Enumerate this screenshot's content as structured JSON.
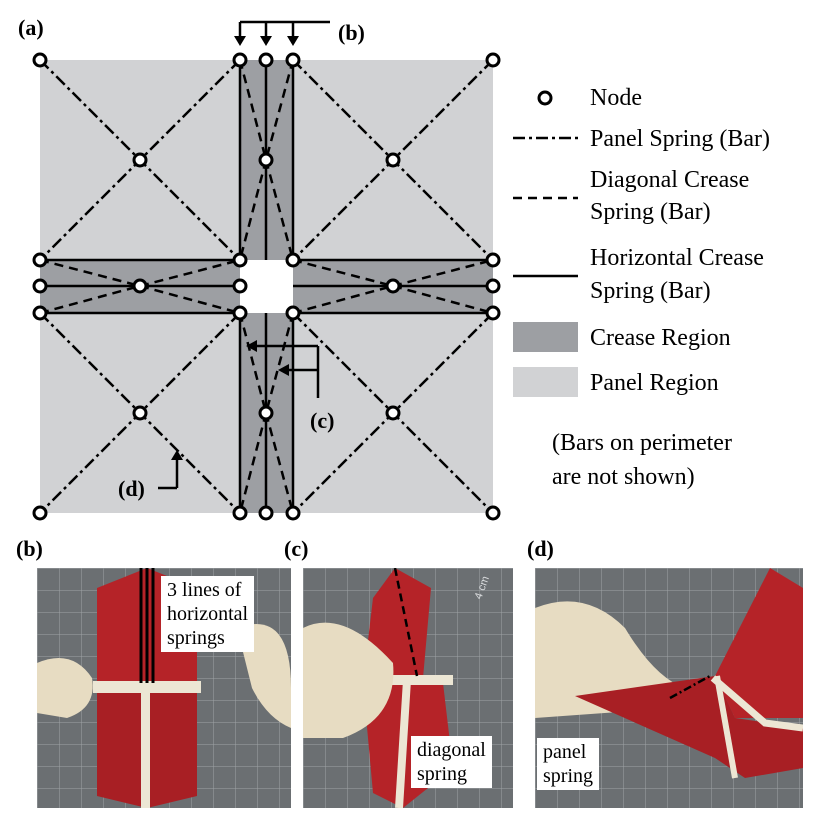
{
  "panel_labels": {
    "a": "(a)",
    "b": "(b)",
    "c": "(c)",
    "d": "(d)"
  },
  "callouts": {
    "b": "(b)",
    "c": "(c)",
    "d": "(d)"
  },
  "legend": {
    "node": "Node",
    "panel_spring": "Panel Spring (Bar)",
    "diagonal_crease_spring_l1": "Diagonal Crease",
    "diagonal_crease_spring_l2": "Spring (Bar)",
    "horizontal_crease_spring_l1": "Horizontal Crease",
    "horizontal_crease_spring_l2": "Spring (Bar)",
    "crease_region": "Crease Region",
    "panel_region": "Panel Region"
  },
  "note": {
    "line1": "(Bars on perimeter",
    "line2": "are not shown)"
  },
  "photo_b": {
    "caption_l1": "3 lines of",
    "caption_l2": "horizontal",
    "caption_l3": "springs"
  },
  "photo_c": {
    "caption_l1": "diagonal",
    "caption_l2": "spring",
    "ruler_text": "4 cm"
  },
  "photo_d": {
    "caption_l1": "panel",
    "caption_l2": "spring"
  },
  "colors": {
    "panel_region": "#d1d2d4",
    "crease_region": "#9d9fa3",
    "paper_red": "#b52328",
    "mat_gray": "#6b6f72",
    "glove": "#e7dcc2"
  }
}
